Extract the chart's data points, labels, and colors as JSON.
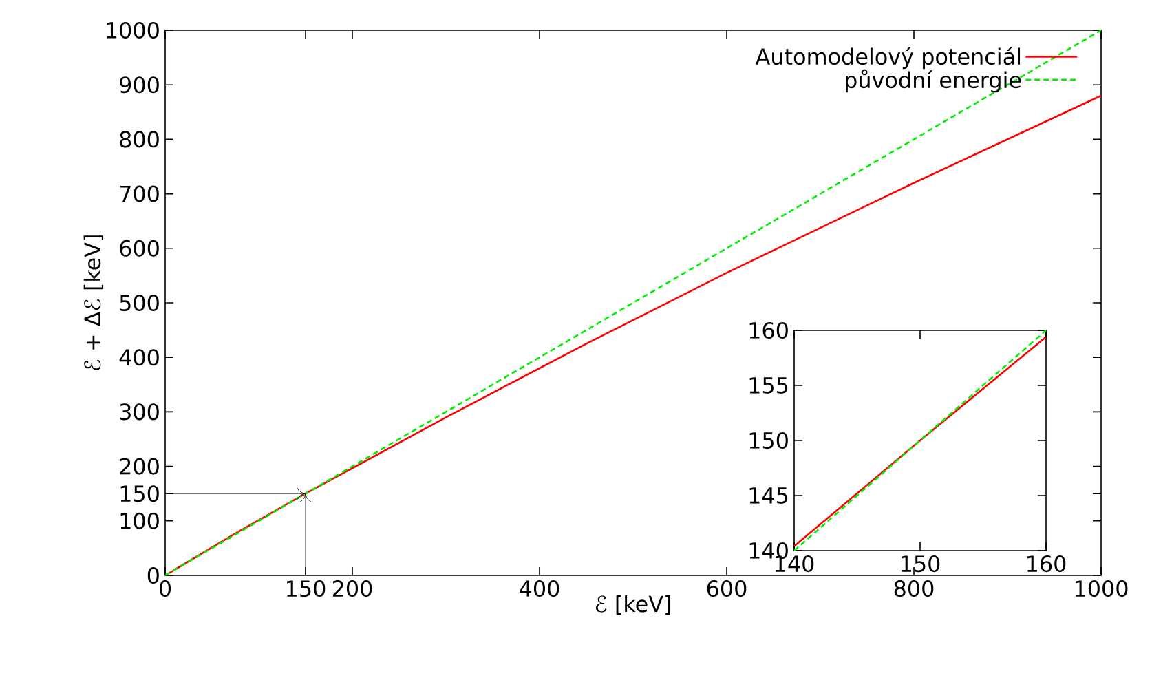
{
  "chart_data": [
    {
      "type": "line",
      "xlabel": "ℰ [keV]",
      "ylabel": "ℰ + Δℰ [keV]",
      "xlim": [
        0,
        1000
      ],
      "ylim": [
        0,
        1000
      ],
      "xticks": [
        0,
        150,
        200,
        400,
        600,
        800,
        1000
      ],
      "yticks": [
        0,
        100,
        150,
        200,
        300,
        400,
        500,
        600,
        700,
        800,
        900,
        1000
      ],
      "legend": "top right",
      "grid": false,
      "series": [
        {
          "name": "Automodelový potenciál",
          "color": "#ff0000",
          "line_style": "solid",
          "x": [
            0,
            75,
            150,
            300,
            450,
            600,
            800,
            1000
          ],
          "values": [
            0,
            77,
            150,
            290,
            425,
            555,
            720,
            880
          ]
        },
        {
          "name": "původní energie",
          "color": "#00ee00",
          "line_style": "dashed",
          "x": [
            0,
            1000
          ],
          "values": [
            0,
            1000
          ]
        }
      ]
    },
    {
      "type": "line",
      "xlim": [
        140,
        160
      ],
      "ylim": [
        140,
        160
      ],
      "xticks": [
        140,
        150,
        160
      ],
      "yticks": [
        140,
        145,
        150,
        155,
        160
      ],
      "grid": false,
      "series": [
        {
          "color": "#ff0000",
          "line_style": "solid",
          "x": [
            140,
            150,
            160
          ],
          "values": [
            140.4,
            150,
            159.4
          ]
        },
        {
          "color": "#00ee00",
          "line_style": "dashed",
          "x": [
            140,
            160
          ],
          "values": [
            140,
            160
          ]
        }
      ]
    }
  ]
}
